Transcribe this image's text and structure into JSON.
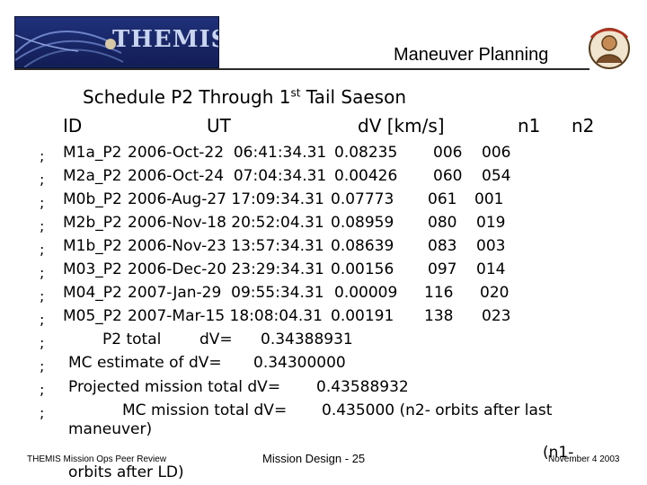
{
  "header": {
    "logo_text": "THEMIS",
    "title": "Maneuver Planning"
  },
  "schedule": {
    "heading": "Schedule P2 Through 1",
    "heading_sup": "st",
    "heading_tail": " Tail Saeson",
    "columns": [
      "ID",
      "UT",
      "dV [km/s]",
      "n1",
      "n2"
    ],
    "rows": [
      {
        "id": "M1a_P2",
        "ut": "2006-Oct-22  06:41:34.31",
        "dv": "0.08235",
        "n1": "006",
        "n2": "006"
      },
      {
        "id": "M2a_P2",
        "ut": "2006-Oct-24  07:04:34.31",
        "dv": "0.00426",
        "n1": "060",
        "n2": "054"
      },
      {
        "id": "M0b_P2",
        "ut": "2006-Aug-27 17:09:34.31",
        "dv": "0.07773",
        "n1": "061",
        "n2": "001"
      },
      {
        "id": "M2b_P2",
        "ut": "2006-Nov-18 20:52:04.31",
        "dv": "0.08959",
        "n1": "080",
        "n2": "019"
      },
      {
        "id": "M1b_P2",
        "ut": "2006-Nov-23 13:57:34.31",
        "dv": "0.08639",
        "n1": "083",
        "n2": "003"
      },
      {
        "id": "M03_P2",
        "ut": "2006-Dec-20 23:29:34.31",
        "dv": "0.00156",
        "n1": "097",
        "n2": "014"
      },
      {
        "id": "M04_P2",
        "ut": "2007-Jan-29  09:55:34.31",
        "dv": "0.00009",
        "n1": "116",
        "n2": "020"
      },
      {
        "id": "M05_P2",
        "ut": "2007-Mar-15 18:08:04.31",
        "dv": "0.00191",
        "n1": "138",
        "n2": "023"
      }
    ],
    "totals": {
      "p2_label": "P2 total",
      "p2_dv_label": "dV=",
      "p2_dv_value": "0.34388931",
      "mc_estimate": "MC estimate of dV=",
      "mc_estimate_value": "0.34300000",
      "projected": "Projected mission total dV=",
      "projected_value": "0.43588932",
      "mc_mission": "MC mission total dV=",
      "mc_mission_value": "0.435000 (n2- orbits after last",
      "mc_mission_cont": "maneuver)",
      "overflow_a": "(n1-",
      "overflow_b": "orbits after LD)"
    },
    "markers": [
      ";",
      ";",
      ";",
      ";",
      ";",
      ";",
      ";",
      ";",
      ";",
      ";",
      ";",
      ";"
    ]
  },
  "footer": {
    "left": "THEMIS Mission Ops Peer Review",
    "center": "Mission Design - 25",
    "right": "November 4 2003"
  }
}
